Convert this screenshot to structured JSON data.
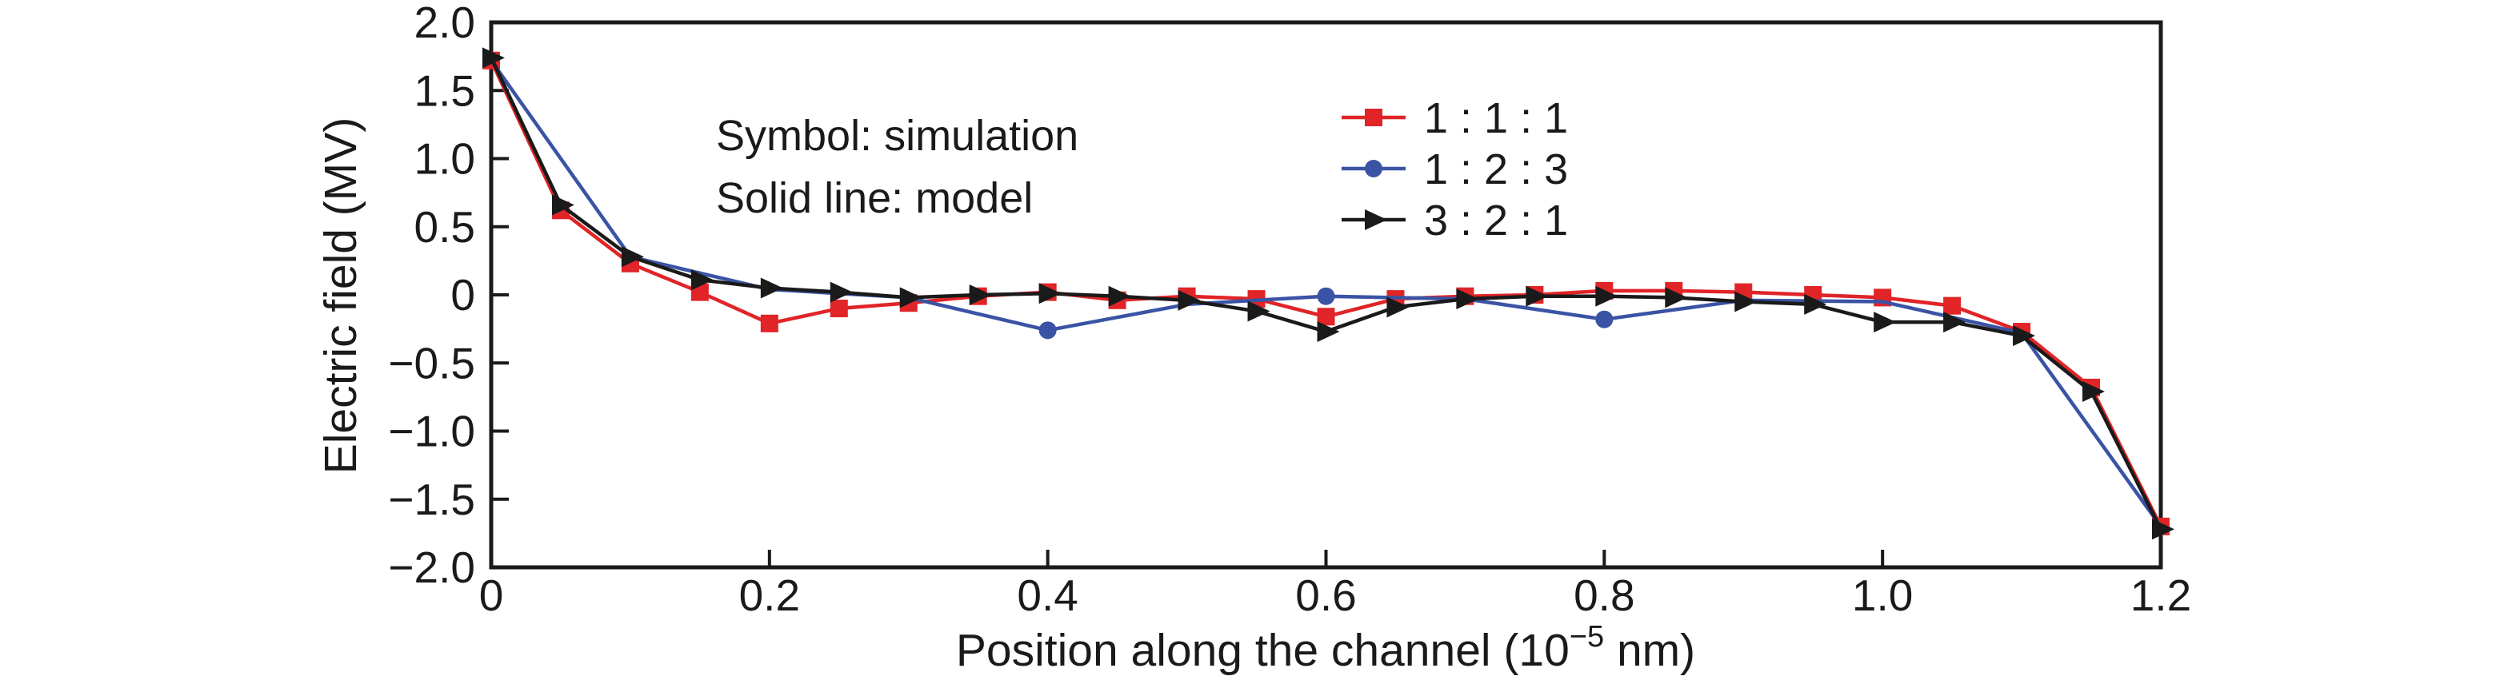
{
  "figure": {
    "ylabel": "Electric field (MV)",
    "xlabel_prefix": "Position along the channel (10",
    "xlabel_sup": "−5",
    "xlabel_suffix": " nm)",
    "annotation": {
      "line1": "Symbol: simulation",
      "line2": "Solid line: model"
    }
  },
  "chart_data": {
    "type": "line",
    "title": "",
    "xlabel": "Position along the channel (10⁻⁵ nm)",
    "ylabel": "Electric field (MV)",
    "xlim": [
      0,
      1.2
    ],
    "ylim": [
      -2.0,
      2.0
    ],
    "grid": false,
    "legend_position": "upper center",
    "legend_note": [
      "Symbol: simulation",
      "Solid line: model"
    ],
    "x_ticks": [
      {
        "v": 0,
        "label": "0"
      },
      {
        "v": 0.2,
        "label": "0.2"
      },
      {
        "v": 0.4,
        "label": "0.4"
      },
      {
        "v": 0.6,
        "label": "0.6"
      },
      {
        "v": 0.8,
        "label": "0.8"
      },
      {
        "v": 1.0,
        "label": "1.0"
      },
      {
        "v": 1.2,
        "label": "1.2"
      }
    ],
    "y_ticks": [
      {
        "v": 2.0,
        "label": "2.0"
      },
      {
        "v": 1.5,
        "label": "1.5"
      },
      {
        "v": 1.0,
        "label": "1.0"
      },
      {
        "v": 0.5,
        "label": "0.5"
      },
      {
        "v": 0,
        "label": "0"
      },
      {
        "v": -0.5,
        "label": "−0.5"
      },
      {
        "v": -1.0,
        "label": "−1.0"
      },
      {
        "v": -1.5,
        "label": "−1.5"
      },
      {
        "v": -2.0,
        "label": "−2.0"
      }
    ],
    "series": [
      {
        "name": "1 : 1 : 1",
        "color": "#e02427",
        "marker": "square",
        "x": [
          0,
          0.05,
          0.1,
          0.15,
          0.2,
          0.25,
          0.3,
          0.35,
          0.4,
          0.45,
          0.5,
          0.55,
          0.6,
          0.65,
          0.7,
          0.75,
          0.8,
          0.85,
          0.9,
          0.95,
          1.0,
          1.05,
          1.1,
          1.15,
          1.2
        ],
        "y": [
          1.72,
          0.62,
          0.23,
          0.02,
          -0.21,
          -0.1,
          -0.06,
          -0.01,
          0.02,
          -0.04,
          -0.01,
          -0.03,
          -0.16,
          -0.03,
          -0.01,
          0.0,
          0.03,
          0.03,
          0.02,
          0.0,
          -0.02,
          -0.08,
          -0.27,
          -0.68,
          -1.7
        ],
        "marker_x": [
          0,
          0.05,
          0.1,
          0.15,
          0.2,
          0.25,
          0.3,
          0.35,
          0.4,
          0.45,
          0.5,
          0.55,
          0.6,
          0.65,
          0.7,
          0.75,
          0.8,
          0.85,
          0.9,
          0.95,
          1.0,
          1.05,
          1.1,
          1.15,
          1.2
        ]
      },
      {
        "name": "1 : 2 : 3",
        "color": "#3a53a4",
        "marker": "circle",
        "x": [
          0,
          0.1,
          0.2,
          0.3,
          0.4,
          0.5,
          0.6,
          0.7,
          0.8,
          0.9,
          1.0,
          1.1,
          1.2
        ],
        "y": [
          1.72,
          0.28,
          0.04,
          -0.02,
          -0.26,
          -0.07,
          -0.01,
          -0.03,
          -0.18,
          -0.04,
          -0.05,
          -0.28,
          -1.7
        ],
        "marker_x": [
          0.4,
          0.6,
          0.8
        ]
      },
      {
        "name": "3 : 2 : 1",
        "color": "#1a1a1a",
        "marker": "triangle-right",
        "x": [
          0,
          0.05,
          0.1,
          0.15,
          0.2,
          0.25,
          0.3,
          0.35,
          0.4,
          0.45,
          0.5,
          0.55,
          0.6,
          0.65,
          0.7,
          0.75,
          0.8,
          0.85,
          0.9,
          0.95,
          1.0,
          1.05,
          1.1,
          1.15,
          1.2
        ],
        "y": [
          1.74,
          0.66,
          0.28,
          0.11,
          0.05,
          0.02,
          -0.02,
          0.0,
          0.01,
          -0.01,
          -0.04,
          -0.12,
          -0.27,
          -0.09,
          -0.03,
          -0.01,
          -0.01,
          -0.02,
          -0.05,
          -0.07,
          -0.2,
          -0.2,
          -0.3,
          -0.71,
          -1.72
        ],
        "marker_x": [
          0,
          0.05,
          0.1,
          0.15,
          0.2,
          0.25,
          0.3,
          0.35,
          0.4,
          0.45,
          0.5,
          0.55,
          0.6,
          0.65,
          0.7,
          0.75,
          0.8,
          0.85,
          0.9,
          0.95,
          1.0,
          1.05,
          1.1,
          1.15,
          1.2
        ]
      }
    ]
  }
}
